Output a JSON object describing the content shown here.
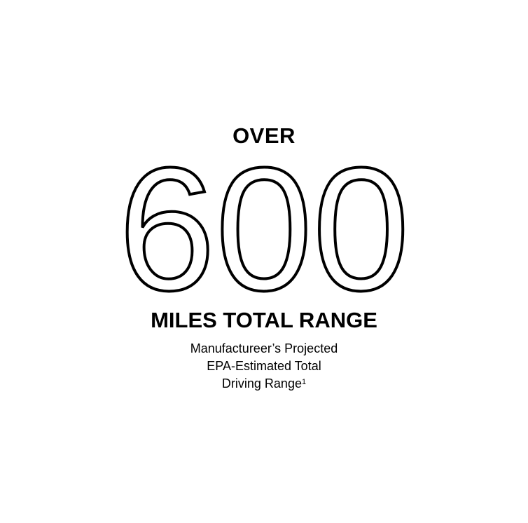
{
  "graphic": {
    "eyebrow": "OVER",
    "figure": "600",
    "headline": "MILES TOTAL RANGE",
    "caption_lines": [
      "Manufactureer’s Projected",
      "EPA-Estimated Total",
      "Driving Range"
    ],
    "footnote_marker": "1",
    "colors": {
      "background": "#ffffff",
      "ink": "#000000"
    }
  }
}
